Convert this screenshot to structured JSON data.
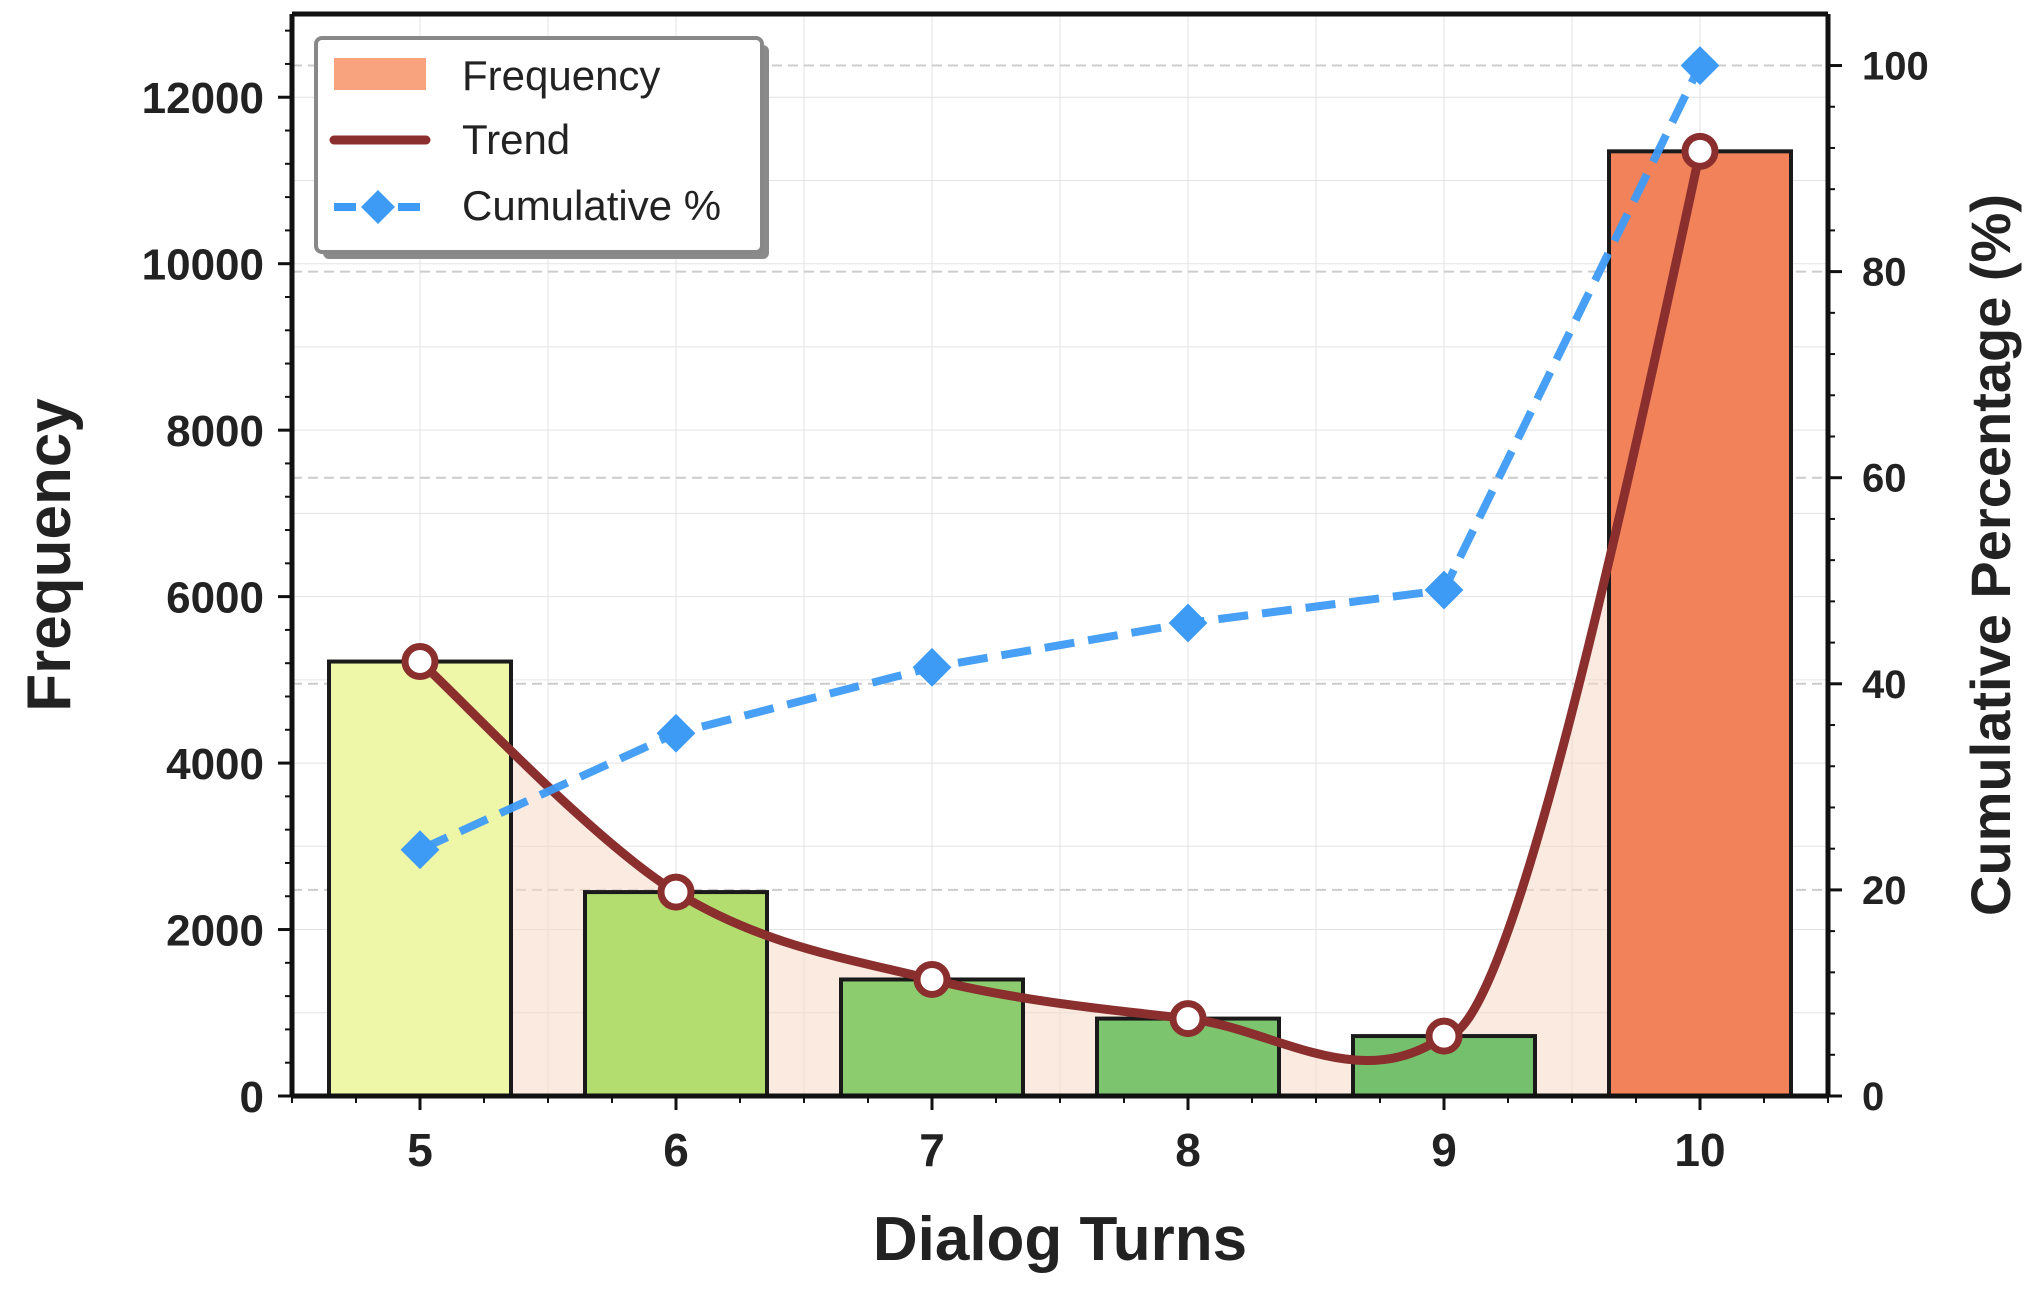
{
  "chart_data": {
    "type": "bar",
    "xlabel": "Dialog Turns",
    "ylabel": "Frequency",
    "y2label": "Cumulative Percentage (%)",
    "categories": [
      "5",
      "6",
      "7",
      "8",
      "9",
      "10"
    ],
    "ylim": [
      0,
      13000
    ],
    "y2lim": [
      0,
      105
    ],
    "yticks": [
      0,
      2000,
      4000,
      6000,
      8000,
      10000,
      12000
    ],
    "y2ticks": [
      0,
      20,
      40,
      60,
      80,
      100
    ],
    "grid": true,
    "legend_position": "top-left",
    "series": [
      {
        "name": "Frequency",
        "type": "bar",
        "values": [
          5220,
          2450,
          1400,
          930,
          720,
          11350
        ],
        "colors": [
          "#eef6a8",
          "#b4dd70",
          "#8ccc6e",
          "#7dc46f",
          "#74c06c",
          "#f2825a"
        ]
      },
      {
        "name": "Trend",
        "type": "line",
        "values": [
          5220,
          2450,
          1400,
          930,
          720,
          11350
        ],
        "color": "#8b2e2e"
      },
      {
        "name": "Cumulative %",
        "type": "line",
        "axis": "right",
        "values": [
          23.9,
          35.2,
          41.6,
          45.9,
          49.1,
          100.0
        ],
        "color": "#3d9bf5"
      }
    ]
  },
  "legend": {
    "items": [
      {
        "label": "Frequency",
        "color": "#f8a27e"
      },
      {
        "label": "Trend",
        "color": "#8b2e2e"
      },
      {
        "label": "Cumulative %",
        "color": "#3d9bf5"
      }
    ]
  },
  "colors": {
    "area_fill": "#f5d8c4",
    "axis": "#111111",
    "grid": "#e3e3e3",
    "text": "#222222"
  }
}
